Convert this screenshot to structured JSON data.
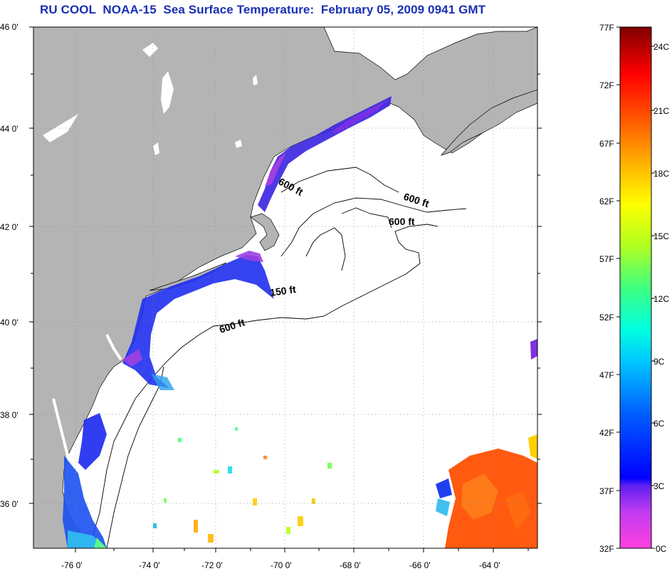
{
  "title": "RU COOL  NOAA-15  Sea Surface Temperature:  February 05, 2009 0941 GMT",
  "map": {
    "lat_range": [
      35,
      46
    ],
    "lon_range": [
      -77,
      -63
    ],
    "lat_labels": [
      "46 0'",
      "44 0'",
      "42 0'",
      "40 0'",
      "38 0'",
      "36 0'"
    ],
    "lon_labels": [
      "-76 0'",
      "-74 0'",
      "-72 0'",
      "-70 0'",
      "-68 0'",
      "-66 0'",
      "-64 0'"
    ],
    "land_color": "#b4b4b4",
    "ocean_color": "#ffffff",
    "contour_labels": [
      "600 ft",
      "600 ft",
      "600 ft",
      "150 ft",
      "600 ft"
    ]
  },
  "colorbar": {
    "fahrenheit_labels": [
      "77F",
      "72F",
      "67F",
      "62F",
      "57F",
      "52F",
      "47F",
      "42F",
      "37F",
      "32F"
    ],
    "celsius_labels": [
      "24C",
      "21C",
      "18C",
      "15C",
      "12C",
      "9C",
      "6C",
      "3C",
      "0C"
    ],
    "range_f": [
      32,
      77
    ],
    "range_c": [
      0,
      25
    ]
  }
}
